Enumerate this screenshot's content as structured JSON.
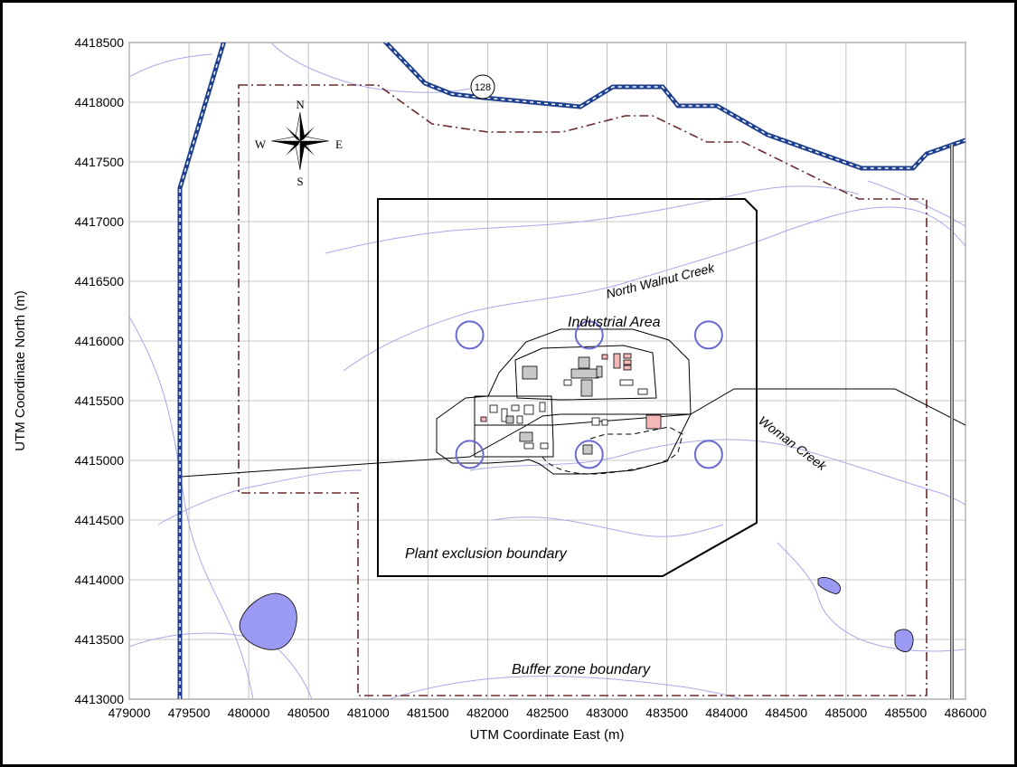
{
  "map": {
    "x_axis": {
      "title": "UTM Coordinate East (m)",
      "ticks": [
        "479000",
        "479500",
        "480000",
        "480500",
        "481000",
        "481500",
        "482000",
        "482500",
        "483000",
        "483500",
        "484000",
        "484500",
        "485000",
        "485500",
        "486000"
      ],
      "range": [
        479000,
        486000
      ]
    },
    "y_axis": {
      "title": "UTM Coordinate North (m)",
      "ticks": [
        "4413000",
        "4413500",
        "4414000",
        "4414500",
        "4415000",
        "4415500",
        "4416000",
        "4416500",
        "4417000",
        "4417500",
        "4418000",
        "4418500"
      ],
      "range": [
        4413000,
        4418500
      ]
    },
    "labels": {
      "north_walnut_creek": "North Walnut Creek",
      "industrial_area": "Industrial Area",
      "woman_creek": "Woman Creek",
      "plant_exclusion": "Plant exclusion boundary",
      "buffer_zone": "Buffer zone boundary",
      "route": "128"
    },
    "compass": {
      "n": "N",
      "s": "S",
      "e": "E",
      "w": "W"
    },
    "monitoring_sites": [
      {
        "east": 481850,
        "north": 4416050
      },
      {
        "east": 482850,
        "north": 4416050
      },
      {
        "east": 483850,
        "north": 4416050
      },
      {
        "east": 481850,
        "north": 4415050
      },
      {
        "east": 482850,
        "north": 4415050
      },
      {
        "east": 483850,
        "north": 4415050
      }
    ],
    "colors": {
      "road": "#1f3f8f",
      "buffer": "#6b2a2a",
      "creek": "#a8a8e8",
      "site": "#6a6ad0",
      "water": "#9a9af2",
      "building_highlight": "#f4b8b8",
      "building": "#c8c8c8"
    }
  }
}
